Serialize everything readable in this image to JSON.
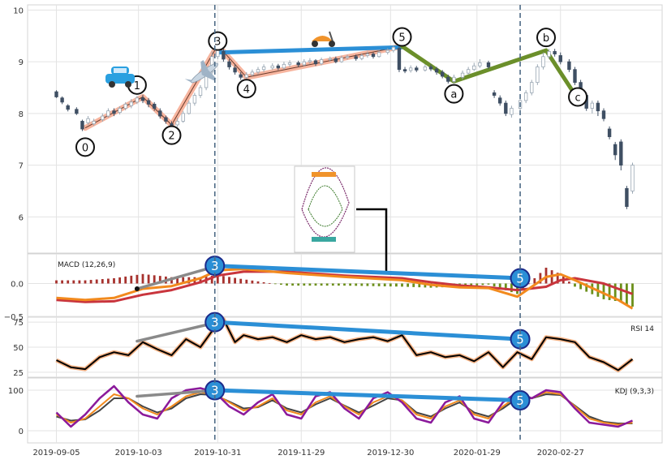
{
  "chart_data": {
    "type": "line",
    "title": "",
    "x_tick_labels": [
      "2019-09-05",
      "2019-10-03",
      "2019-10-31",
      "2019-11-29",
      "2019-12-30",
      "2020-01-29",
      "2020-02-27"
    ],
    "vertical_markers_days": [
      55,
      161
    ],
    "panels": {
      "price": {
        "ylim": [
          5.3,
          10.1
        ],
        "yticks": [
          6,
          7,
          8,
          9,
          10
        ],
        "candles": [
          [
            0,
            8.42,
            8.32,
            8.45,
            8.3
          ],
          [
            2,
            8.3,
            8.22,
            8.33,
            8.18
          ],
          [
            4,
            8.15,
            8.08,
            8.18,
            8.04
          ],
          [
            7,
            8.08,
            8.0,
            8.12,
            7.97
          ],
          [
            9,
            7.85,
            7.7,
            7.88,
            7.66
          ],
          [
            11,
            7.82,
            7.9,
            7.95,
            7.78
          ],
          [
            13,
            7.8,
            7.85,
            7.9,
            7.76
          ],
          [
            16,
            7.88,
            7.95,
            8.0,
            7.84
          ],
          [
            18,
            7.95,
            8.05,
            8.1,
            7.92
          ],
          [
            20,
            8.05,
            8.0,
            8.1,
            7.95
          ],
          [
            22,
            8.02,
            8.1,
            8.14,
            7.98
          ],
          [
            24,
            8.1,
            8.18,
            8.22,
            8.06
          ],
          [
            26,
            8.15,
            8.22,
            8.28,
            8.1
          ],
          [
            28,
            8.22,
            8.3,
            8.34,
            8.18
          ],
          [
            30,
            8.3,
            8.25,
            8.36,
            8.2
          ],
          [
            32,
            8.25,
            8.18,
            8.3,
            8.12
          ],
          [
            34,
            8.18,
            8.1,
            8.22,
            8.05
          ],
          [
            36,
            8.05,
            7.95,
            8.1,
            7.9
          ],
          [
            38,
            7.92,
            7.85,
            7.96,
            7.8
          ],
          [
            40,
            7.8,
            7.75,
            7.85,
            7.7
          ],
          [
            42,
            7.78,
            7.85,
            7.92,
            7.74
          ],
          [
            44,
            7.85,
            8.0,
            8.05,
            7.82
          ],
          [
            46,
            8.0,
            8.2,
            8.25,
            7.98
          ],
          [
            48,
            8.2,
            8.35,
            8.4,
            8.15
          ],
          [
            50,
            8.35,
            8.5,
            8.55,
            8.3
          ],
          [
            52,
            8.5,
            8.8,
            8.85,
            8.45
          ],
          [
            54,
            8.8,
            9.1,
            9.2,
            8.75
          ],
          [
            56,
            9.1,
            9.28,
            9.35,
            9.05
          ],
          [
            58,
            9.2,
            9.05,
            9.25,
            9.0
          ],
          [
            60,
            9.0,
            8.9,
            9.05,
            8.85
          ],
          [
            62,
            8.88,
            8.8,
            8.95,
            8.75
          ],
          [
            64,
            8.75,
            8.7,
            8.8,
            8.65
          ],
          [
            66,
            8.7,
            8.75,
            8.8,
            8.66
          ],
          [
            68,
            8.75,
            8.8,
            8.85,
            8.72
          ],
          [
            70,
            8.8,
            8.85,
            8.9,
            8.76
          ],
          [
            72,
            8.85,
            8.9,
            8.95,
            8.8
          ],
          [
            75,
            8.88,
            8.92,
            8.97,
            8.84
          ],
          [
            77,
            8.92,
            8.88,
            8.96,
            8.84
          ],
          [
            79,
            8.88,
            8.95,
            9.0,
            8.85
          ],
          [
            81,
            8.95,
            8.98,
            9.03,
            8.9
          ],
          [
            84,
            8.98,
            8.94,
            9.02,
            8.9
          ],
          [
            86,
            8.94,
            9.0,
            9.05,
            8.91
          ],
          [
            88,
            9.0,
            9.02,
            9.07,
            8.96
          ],
          [
            90,
            9.02,
            8.96,
            9.05,
            8.92
          ],
          [
            92,
            8.96,
            9.04,
            9.08,
            8.93
          ],
          [
            95,
            9.04,
            9.06,
            9.1,
            9.0
          ],
          [
            97,
            9.06,
            9.0,
            9.1,
            8.97
          ],
          [
            99,
            9.0,
            9.08,
            9.12,
            8.98
          ],
          [
            101,
            9.08,
            9.1,
            9.14,
            9.04
          ],
          [
            104,
            9.1,
            9.06,
            9.14,
            9.02
          ],
          [
            106,
            9.06,
            9.12,
            9.16,
            9.03
          ],
          [
            108,
            9.12,
            9.15,
            9.2,
            9.08
          ],
          [
            110,
            9.15,
            9.1,
            9.18,
            9.06
          ],
          [
            112,
            9.1,
            9.18,
            9.22,
            9.08
          ],
          [
            115,
            9.18,
            9.22,
            9.26,
            9.14
          ],
          [
            117,
            9.22,
            9.28,
            9.32,
            9.18
          ],
          [
            119,
            9.26,
            8.85,
            9.3,
            8.8
          ],
          [
            121,
            8.85,
            8.82,
            8.9,
            8.78
          ],
          [
            123,
            8.83,
            8.88,
            8.93,
            8.79
          ],
          [
            125,
            8.88,
            8.84,
            8.92,
            8.8
          ],
          [
            128,
            8.84,
            8.9,
            8.95,
            8.81
          ],
          [
            130,
            8.9,
            8.86,
            8.95,
            8.82
          ],
          [
            132,
            8.86,
            8.8,
            8.9,
            8.75
          ],
          [
            134,
            8.8,
            8.72,
            8.84,
            8.68
          ],
          [
            136,
            8.7,
            8.62,
            8.75,
            8.58
          ],
          [
            138,
            8.62,
            8.7,
            8.75,
            8.58
          ],
          [
            141,
            8.7,
            8.78,
            8.83,
            8.66
          ],
          [
            143,
            8.78,
            8.85,
            8.9,
            8.75
          ],
          [
            145,
            8.85,
            8.92,
            8.98,
            8.82
          ],
          [
            147,
            8.92,
            8.98,
            9.05,
            8.88
          ],
          [
            150,
            8.98,
            8.9,
            9.02,
            8.86
          ],
          [
            152,
            8.4,
            8.35,
            8.45,
            8.3
          ],
          [
            154,
            8.3,
            8.2,
            8.35,
            8.15
          ],
          [
            156,
            8.2,
            8.0,
            8.25,
            7.95
          ],
          [
            158,
            7.98,
            8.1,
            8.15,
            7.92
          ],
          [
            161,
            8.1,
            8.25,
            8.3,
            8.05
          ],
          [
            163,
            8.25,
            8.4,
            8.45,
            8.2
          ],
          [
            165,
            8.4,
            8.6,
            8.65,
            8.35
          ],
          [
            167,
            8.6,
            8.9,
            8.95,
            8.55
          ],
          [
            169,
            8.9,
            9.1,
            9.18,
            8.85
          ],
          [
            171,
            9.1,
            9.2,
            9.25,
            9.05
          ],
          [
            173,
            9.2,
            9.15,
            9.25,
            9.1
          ],
          [
            175,
            9.12,
            9.0,
            9.18,
            8.95
          ],
          [
            178,
            9.0,
            8.85,
            9.05,
            8.8
          ],
          [
            180,
            8.85,
            8.6,
            8.9,
            8.55
          ],
          [
            182,
            8.6,
            8.35,
            8.65,
            8.3
          ],
          [
            184,
            8.35,
            8.1,
            8.4,
            8.05
          ],
          [
            186,
            8.1,
            8.2,
            8.25,
            8.0
          ],
          [
            188,
            8.2,
            8.05,
            8.25,
            7.95
          ],
          [
            190,
            8.05,
            7.9,
            8.1,
            7.85
          ],
          [
            192,
            7.7,
            7.55,
            7.75,
            7.5
          ],
          [
            194,
            7.4,
            7.2,
            7.45,
            7.1
          ],
          [
            196,
            7.45,
            7.0,
            7.5,
            6.9
          ],
          [
            198,
            6.55,
            6.2,
            6.6,
            6.15
          ],
          [
            200,
            6.5,
            7.0,
            7.05,
            6.45
          ]
        ],
        "wave_points_up": [
          [
            10,
            7.72
          ],
          [
            30,
            8.32
          ],
          [
            40,
            7.78
          ],
          [
            56,
            9.32
          ],
          [
            66,
            8.7
          ],
          [
            120,
            9.3
          ]
        ],
        "wave_points_down": [
          [
            120,
            9.3
          ],
          [
            138,
            8.62
          ],
          [
            170,
            9.22
          ],
          [
            181,
            8.28
          ]
        ],
        "wave_labels": [
          {
            "label": "0",
            "day": 10,
            "value": 7.35
          },
          {
            "label": "1",
            "day": 28,
            "value": 8.55
          },
          {
            "label": "2",
            "day": 40,
            "value": 7.58
          },
          {
            "label": "3",
            "day": 56,
            "value": 9.4
          },
          {
            "label": "4",
            "day": 66,
            "value": 8.48
          },
          {
            "label": "5",
            "day": 120,
            "value": 9.48
          },
          {
            "label": "a",
            "day": 138,
            "value": 8.38
          },
          {
            "label": "b",
            "day": 170,
            "value": 9.47
          },
          {
            "label": "c",
            "day": 181,
            "value": 8.32
          }
        ],
        "trend_line": [
          [
            56,
            9.18
          ],
          [
            120,
            9.28
          ]
        ]
      },
      "macd": {
        "label": "MACD (12,26,9)",
        "ylim": [
          -0.5,
          0.45
        ],
        "yticks": [
          0.0,
          -0.5
        ],
        "ytick_labels": [
          "0.0",
          "−0.5"
        ],
        "x": [
          0,
          10,
          20,
          30,
          40,
          50,
          56,
          65,
          80,
          100,
          120,
          130,
          140,
          150,
          160,
          170,
          175,
          180,
          190,
          195,
          200
        ],
        "macd": [
          -0.22,
          -0.25,
          -0.22,
          -0.08,
          -0.04,
          0.08,
          0.2,
          0.22,
          0.16,
          0.1,
          0.05,
          -0.02,
          -0.06,
          -0.07,
          -0.2,
          0.1,
          0.14,
          0.05,
          -0.15,
          -0.25,
          -0.38
        ],
        "signal": [
          -0.25,
          -0.28,
          -0.27,
          -0.17,
          -0.1,
          0.02,
          0.12,
          0.18,
          0.18,
          0.12,
          0.08,
          0.02,
          -0.03,
          -0.06,
          -0.1,
          -0.05,
          0.05,
          0.08,
          0.0,
          -0.08,
          -0.16
        ],
        "marker_3_value": 0.27,
        "marker_5_value": 0.08,
        "grey_line": [
          [
            28,
            -0.08
          ],
          [
            56,
            0.27
          ]
        ]
      },
      "rsi": {
        "label": "RSI 14",
        "ylim": [
          20,
          80
        ],
        "yticks": [
          25,
          50,
          75
        ],
        "x": [
          0,
          5,
          10,
          15,
          20,
          25,
          30,
          35,
          40,
          45,
          50,
          55,
          58,
          62,
          65,
          70,
          75,
          80,
          85,
          90,
          95,
          100,
          105,
          110,
          115,
          120,
          125,
          130,
          135,
          140,
          145,
          150,
          155,
          160,
          165,
          170,
          175,
          180,
          185,
          190,
          195,
          200
        ],
        "values": [
          37,
          30,
          28,
          40,
          45,
          42,
          55,
          48,
          42,
          58,
          50,
          70,
          78,
          55,
          62,
          58,
          60,
          55,
          62,
          58,
          60,
          55,
          58,
          60,
          56,
          62,
          42,
          45,
          40,
          42,
          36,
          45,
          30,
          45,
          38,
          60,
          58,
          55,
          40,
          35,
          27,
          38
        ],
        "marker_3_value": 75,
        "marker_5_value": 58,
        "grey_line": [
          [
            28,
            56
          ],
          [
            56,
            75
          ]
        ]
      },
      "kdj": {
        "label": "KDJ (9,3,3)",
        "ylim": [
          -30,
          130
        ],
        "yticks": [
          0,
          100
        ],
        "x": [
          0,
          5,
          10,
          15,
          20,
          25,
          30,
          35,
          40,
          45,
          50,
          55,
          60,
          65,
          70,
          75,
          80,
          85,
          90,
          95,
          100,
          105,
          110,
          115,
          120,
          125,
          130,
          135,
          140,
          145,
          150,
          155,
          160,
          165,
          170,
          175,
          180,
          185,
          190,
          195,
          200
        ],
        "k": [
          40,
          20,
          30,
          60,
          90,
          80,
          55,
          40,
          60,
          85,
          95,
          90,
          70,
          50,
          60,
          80,
          50,
          40,
          70,
          85,
          60,
          40,
          70,
          85,
          75,
          40,
          30,
          60,
          75,
          40,
          30,
          60,
          85,
          80,
          95,
          90,
          60,
          30,
          20,
          15,
          20
        ],
        "d": [
          35,
          25,
          28,
          50,
          80,
          80,
          60,
          45,
          55,
          80,
          90,
          88,
          72,
          55,
          58,
          75,
          55,
          45,
          65,
          80,
          62,
          45,
          62,
          80,
          75,
          45,
          35,
          55,
          70,
          45,
          35,
          55,
          80,
          80,
          90,
          88,
          62,
          35,
          22,
          18,
          18
        ],
        "j": [
          45,
          10,
          40,
          80,
          110,
          70,
          40,
          30,
          80,
          100,
          105,
          95,
          60,
          40,
          70,
          90,
          40,
          30,
          85,
          95,
          55,
          30,
          80,
          95,
          70,
          30,
          20,
          70,
          85,
          30,
          20,
          70,
          95,
          80,
          100,
          95,
          55,
          20,
          15,
          10,
          25
        ],
        "marker_3_value": 100,
        "marker_5_value": 75,
        "grey_line": [
          [
            28,
            85
          ],
          [
            56,
            100
          ]
        ]
      }
    }
  }
}
